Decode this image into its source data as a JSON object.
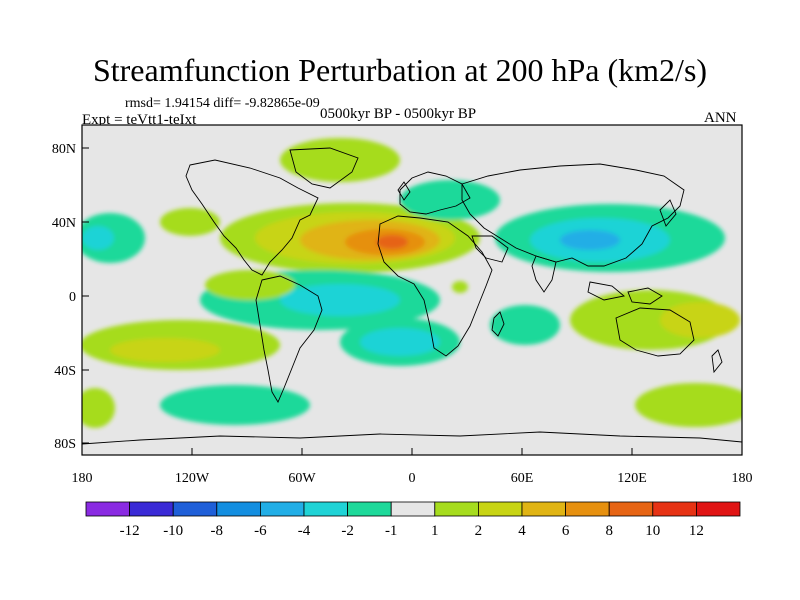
{
  "title": "Streamfunction Perturbation at 200 hPa (km2/s)",
  "stats": "rmsd= 1.94154 diff= -9.82865e-09",
  "experiment": "Expt = teVtt1-teIxt",
  "period": "0500kyr BP - 0500kyr BP",
  "season": "ANN",
  "axes": {
    "x_ticks": [
      "180",
      "120W",
      "60W",
      "0",
      "60E",
      "120E",
      "180"
    ],
    "y_ticks": [
      "80N",
      "40N",
      "0",
      "40S",
      "80S"
    ]
  },
  "colorbar": {
    "labels": [
      "-12",
      "-10",
      "-8",
      "-6",
      "-4",
      "-2",
      "-1",
      "1",
      "2",
      "4",
      "6",
      "8",
      "10",
      "12"
    ],
    "colors": [
      "#8a2be2",
      "#3a2ad6",
      "#1f5fd8",
      "#138ee0",
      "#22aee6",
      "#1fd3d6",
      "#1ed99a",
      "#e6e6e6",
      "#a6dc1e",
      "#c8d414",
      "#e0b414",
      "#e6900f",
      "#e66414",
      "#e63214",
      "#e01414"
    ]
  }
}
